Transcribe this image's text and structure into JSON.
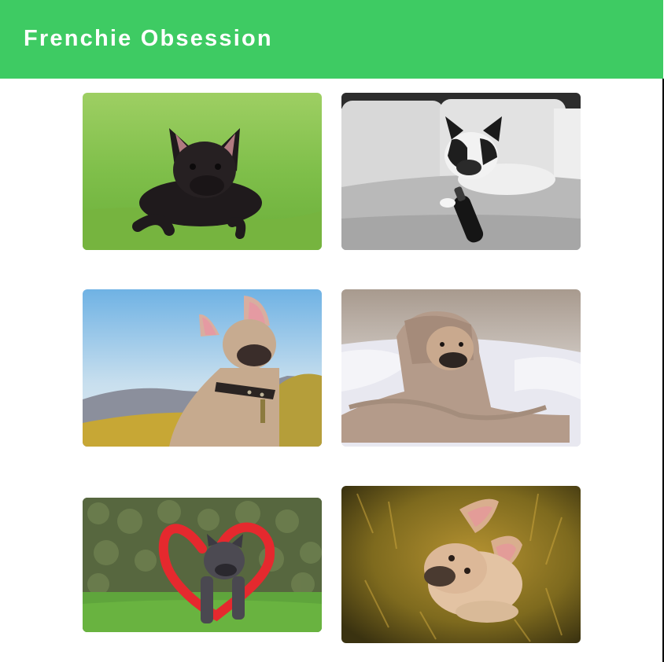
{
  "header": {
    "title": "Frenchie Obsession",
    "background": "#3ecb63",
    "title_color": "#ffffff"
  },
  "gallery": {
    "photos": [
      {
        "subject": "black french bulldog lying on green grass"
      },
      {
        "subject": "black and white french bulldog on sofa with bottle"
      },
      {
        "subject": "fawn french bulldog with collar against blue sky"
      },
      {
        "subject": "french bulldog wrapped in beige blanket on bed"
      },
      {
        "subject": "grey french bulldog inside red heart wreath"
      },
      {
        "subject": "fawn french bulldog sitting in golden grass, top view"
      }
    ]
  }
}
